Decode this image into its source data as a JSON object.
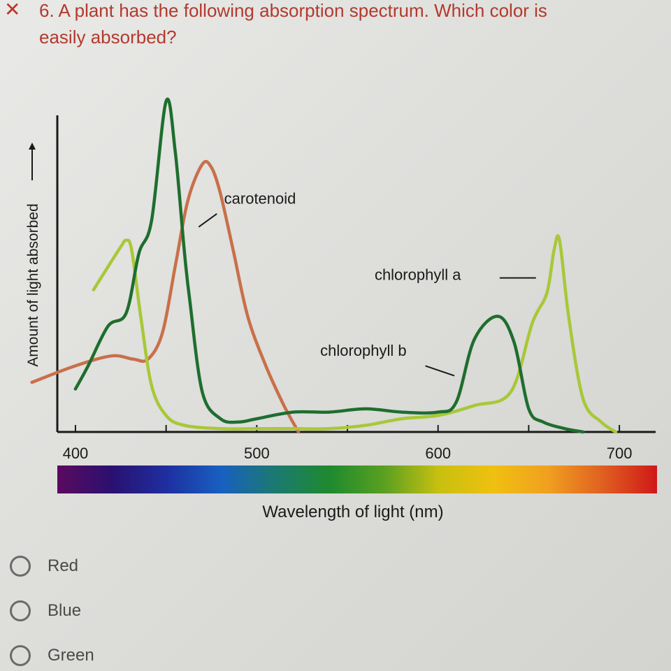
{
  "question": {
    "status_icon": "x-icon",
    "line1": "6. A plant has the following absorption spectrum. Which color is",
    "line2": "easily absorbed?"
  },
  "options": [
    {
      "label": "Red"
    },
    {
      "label": "Blue"
    },
    {
      "label": "Green"
    }
  ],
  "chart_data": {
    "type": "line",
    "title": "",
    "xlabel": "Wavelength of light (nm)",
    "ylabel": "Amount of light absorbed",
    "xlim": [
      390,
      720
    ],
    "ylim": [
      0,
      1
    ],
    "x_ticks": [
      400,
      500,
      600,
      700
    ],
    "grid": false,
    "spectrum_bar": [
      "#5a0a5e",
      "#2a1070",
      "#1e2fa0",
      "#1860c0",
      "#1a7a70",
      "#1e8a2e",
      "#5aa020",
      "#c8c010",
      "#f0c010",
      "#f0a020",
      "#e06020",
      "#d01818"
    ],
    "series": [
      {
        "name": "carotenoid",
        "color": "#c8704a",
        "label_pos": [
          482,
          0.69
        ],
        "leader": [
          [
            478,
            0.66
          ],
          [
            468,
            0.62
          ]
        ],
        "x": [
          376,
          400,
          420,
          432,
          440,
          448,
          455,
          462,
          470,
          475,
          480,
          487,
          495,
          505,
          515,
          523
        ],
        "y": [
          0.15,
          0.2,
          0.23,
          0.22,
          0.22,
          0.3,
          0.5,
          0.7,
          0.81,
          0.8,
          0.72,
          0.55,
          0.35,
          0.2,
          0.08,
          0.0
        ]
      },
      {
        "name": "chlorophyll a",
        "color": "#a8c838",
        "label_pos": [
          565,
          0.46
        ],
        "leader": [
          [
            634,
            0.466
          ],
          [
            654,
            0.466
          ]
        ],
        "x": [
          410,
          418,
          425,
          428,
          431,
          436,
          442,
          450,
          460,
          480,
          500,
          520,
          540,
          560,
          580,
          600,
          620,
          640,
          652,
          660,
          664,
          667,
          672,
          680,
          690,
          698
        ],
        "y": [
          0.43,
          0.5,
          0.56,
          0.58,
          0.55,
          0.35,
          0.14,
          0.05,
          0.02,
          0.01,
          0.01,
          0.01,
          0.01,
          0.02,
          0.04,
          0.05,
          0.08,
          0.12,
          0.33,
          0.42,
          0.55,
          0.58,
          0.35,
          0.1,
          0.03,
          0.0
        ]
      },
      {
        "name": "chlorophyll b",
        "color": "#1e6e2e",
        "label_pos": [
          535,
          0.23
        ],
        "leader": [
          [
            593,
            0.2
          ],
          [
            609,
            0.17
          ]
        ],
        "x": [
          400,
          407,
          418,
          428,
          435,
          442,
          450,
          455,
          460,
          463,
          470,
          480,
          490,
          500,
          520,
          540,
          560,
          580,
          600,
          610,
          620,
          633,
          642,
          650,
          658,
          670,
          680
        ],
        "y": [
          0.13,
          0.2,
          0.32,
          0.36,
          0.54,
          0.64,
          1.0,
          0.85,
          0.55,
          0.4,
          0.12,
          0.04,
          0.03,
          0.04,
          0.06,
          0.06,
          0.07,
          0.06,
          0.06,
          0.09,
          0.28,
          0.35,
          0.27,
          0.07,
          0.03,
          0.01,
          0.0
        ]
      }
    ]
  }
}
